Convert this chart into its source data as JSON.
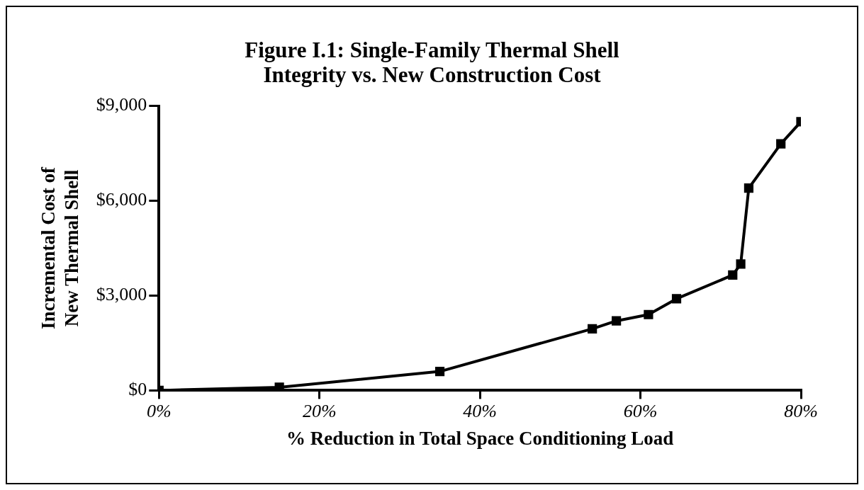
{
  "chart_data": {
    "type": "line",
    "title": "Figure I.1: Single-Family Thermal Shell Integrity vs. New Construction Cost",
    "xlabel": "% Reduction in Total Space Conditioning Load",
    "ylabel": "Incremental Cost of New Thermal Shell",
    "x": [
      0,
      15,
      35,
      54,
      57,
      61,
      64.5,
      71.5,
      72.5,
      73.5,
      77.5,
      80
    ],
    "series": [
      {
        "color": "#000000",
        "values": [
          0,
          100,
          600,
          1950,
          2200,
          2400,
          2900,
          3650,
          4000,
          6400,
          7800,
          8500
        ]
      }
    ],
    "xlim": [
      0,
      80
    ],
    "xticks": [
      {
        "value": 0,
        "label": "0%"
      },
      {
        "value": 20,
        "label": "20%"
      },
      {
        "value": 40,
        "label": "40%"
      },
      {
        "value": 60,
        "label": "60%"
      },
      {
        "value": 80,
        "label": "80%"
      }
    ],
    "ylim": [
      0,
      9000
    ],
    "yticks": [
      {
        "value": 0,
        "label": "$0"
      },
      {
        "value": 3000,
        "label": "$3,000"
      },
      {
        "value": 6000,
        "label": "$6,000"
      },
      {
        "value": 9000,
        "label": "$9,000"
      }
    ],
    "grid": false,
    "legend": false,
    "marker": "square",
    "line_style": "solid"
  }
}
